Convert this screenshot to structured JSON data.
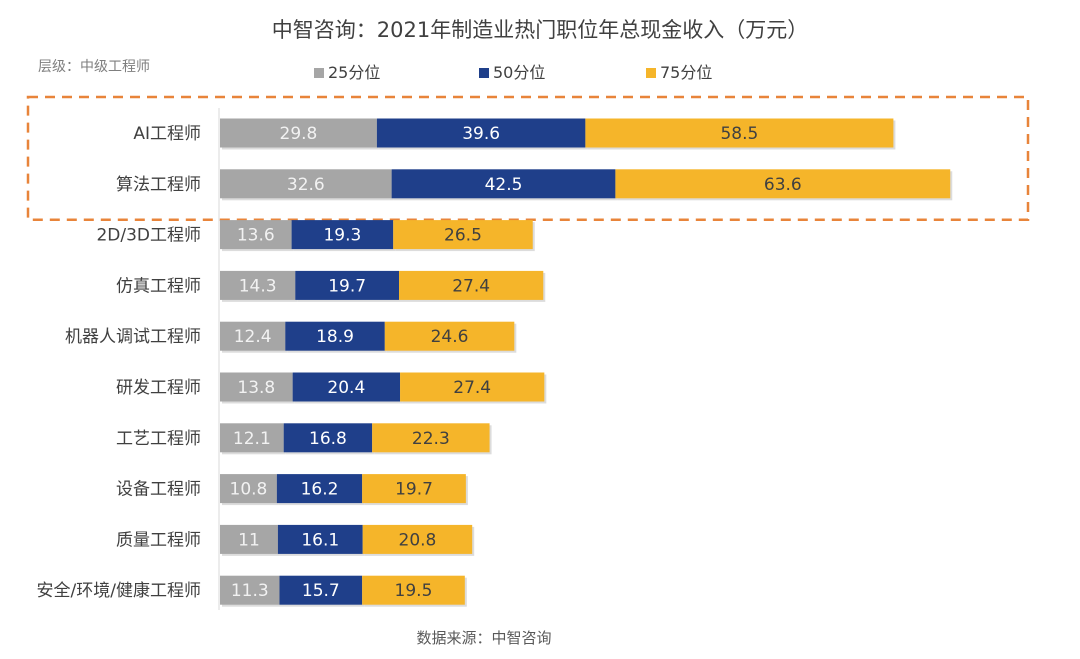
{
  "chart_data": {
    "type": "bar",
    "orientation": "horizontal",
    "stacked": true,
    "title": "中智咨询：2021年制造业热门职位年总现金收入（万元）",
    "subtitle": "层级：中级工程师",
    "source": "数据来源：中智咨询",
    "legend_position": "top",
    "categories": [
      "AI工程师",
      "算法工程师",
      "2D/3D工程师",
      "仿真工程师",
      "机器人调试工程师",
      "研发工程师",
      "工艺工程师",
      "设备工程师",
      "质量工程师",
      "安全/环境/健康工程师"
    ],
    "series": [
      {
        "name": "25分位",
        "color": "#a6a6a6",
        "label_color": "#f2f2f2",
        "values": [
          29.8,
          32.6,
          13.6,
          14.3,
          12.4,
          13.8,
          12.1,
          10.8,
          11,
          11.3
        ]
      },
      {
        "name": "50分位",
        "color": "#1f3f8a",
        "label_color": "#ffffff",
        "values": [
          39.6,
          42.5,
          19.3,
          19.7,
          18.9,
          20.4,
          16.8,
          16.2,
          16.1,
          15.7
        ]
      },
      {
        "name": "75分位",
        "color": "#f5b52a",
        "label_color": "#404040",
        "values": [
          58.5,
          63.6,
          26.5,
          27.4,
          24.6,
          27.4,
          22.3,
          19.7,
          20.8,
          19.5
        ]
      }
    ],
    "highlight": {
      "categories": [
        "AI工程师",
        "算法工程师"
      ],
      "color": "#e8843a"
    },
    "grid": false
  }
}
